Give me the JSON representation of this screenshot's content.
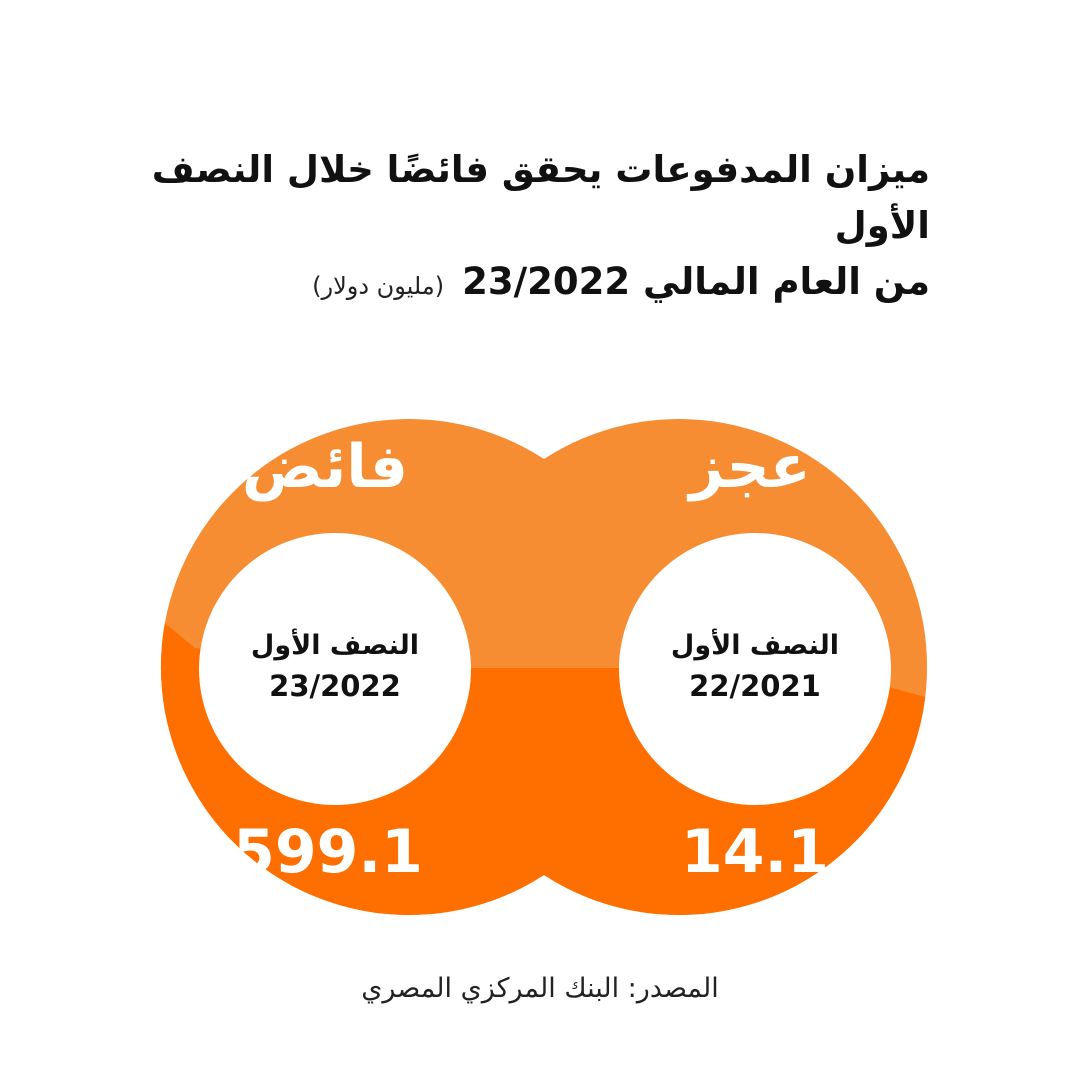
{
  "title": {
    "line1": "ميزان المدفوعات يحقق فائضًا خلال النصف الأول",
    "line2": "من العام المالي 23/2022",
    "unit": "(مليون دولار)"
  },
  "colors": {
    "light_orange": "#F78D33",
    "dark_orange": "#FF6F00",
    "white": "#FFFFFF",
    "text": "#111111"
  },
  "chart_data": {
    "type": "other",
    "series": [
      {
        "period_line1": "النصف الأول",
        "period_line2": "23/2022",
        "status": "فائض",
        "value_label": "599.1",
        "value": 599.1
      },
      {
        "period_line1": "النصف الأول",
        "period_line2": "22/2021",
        "status": "عجز",
        "value_label": "14.1",
        "value": 14.1
      }
    ]
  },
  "source": "المصدر: البنك المركزي المصري"
}
